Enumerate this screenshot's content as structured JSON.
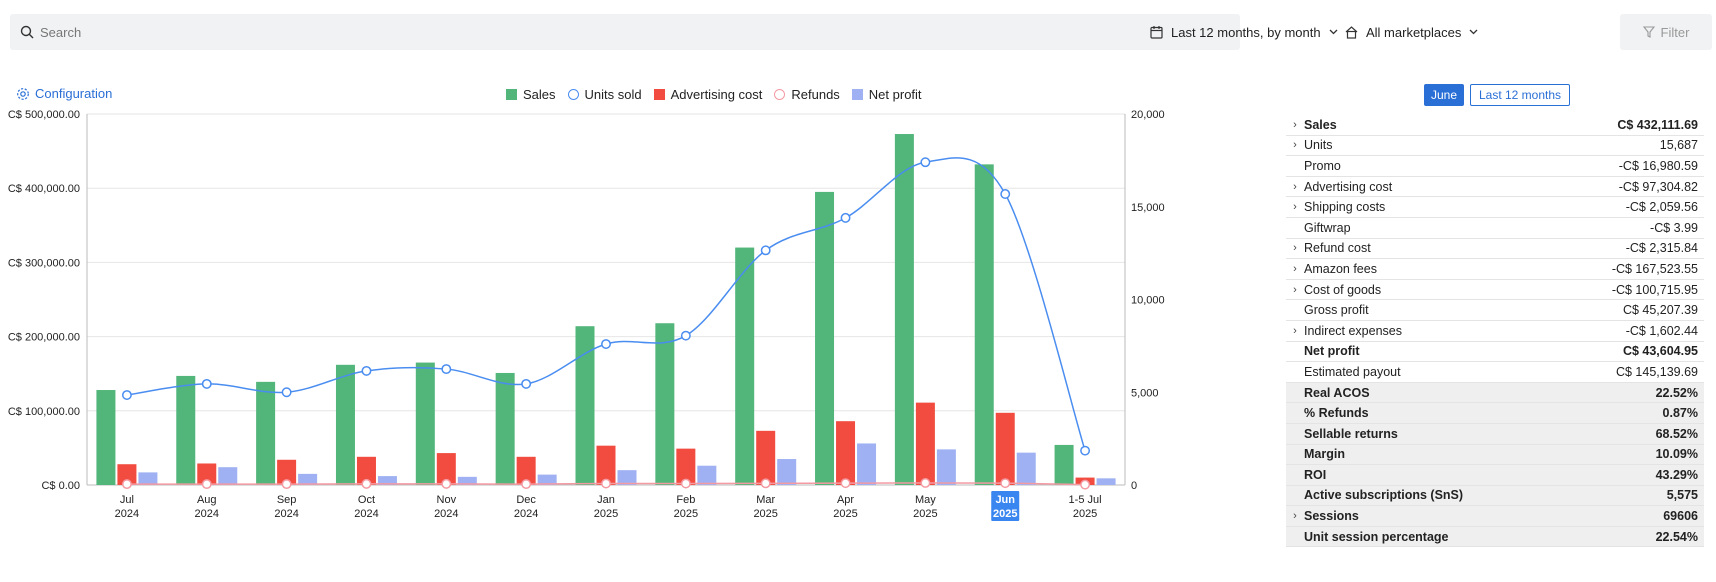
{
  "search": {
    "placeholder": "Search"
  },
  "toolbar": {
    "date_range": "Last 12 months, by month",
    "marketplace": "All marketplaces",
    "filter": "Filter"
  },
  "config_label": "Configuration",
  "legend": [
    {
      "label": "Sales",
      "color": "#52b57a",
      "kind": "bar"
    },
    {
      "label": "Units sold",
      "color": "#4a8df0",
      "kind": "line"
    },
    {
      "label": "Advertising cost",
      "color": "#f14c3f",
      "kind": "bar"
    },
    {
      "label": "Refunds",
      "color": "#f49aa3",
      "kind": "line"
    },
    {
      "label": "Net profit",
      "color": "#9fb1f2",
      "kind": "bar"
    }
  ],
  "periods": {
    "active": "June",
    "other": "Last 12 months"
  },
  "chart_data": {
    "type": "bar",
    "categories": [
      "Jul 2024",
      "Aug 2024",
      "Sep 2024",
      "Oct 2024",
      "Nov 2024",
      "Dec 2024",
      "Jan 2025",
      "Feb 2025",
      "Mar 2025",
      "Apr 2025",
      "May 2025",
      "Jun 2025",
      "1-5 Jul 2025"
    ],
    "x_labels": [
      [
        "Jul",
        "2024"
      ],
      [
        "Aug",
        "2024"
      ],
      [
        "Sep",
        "2024"
      ],
      [
        "Oct",
        "2024"
      ],
      [
        "Nov",
        "2024"
      ],
      [
        "Dec",
        "2024"
      ],
      [
        "Jan",
        "2025"
      ],
      [
        "Feb",
        "2025"
      ],
      [
        "Mar",
        "2025"
      ],
      [
        "Apr",
        "2025"
      ],
      [
        "May",
        "2025"
      ],
      [
        "Jun",
        "2025"
      ],
      [
        "1-5 Jul",
        "2025"
      ]
    ],
    "highlighted_category": "Jun 2025",
    "left_axis": {
      "ticks": [
        "C$ 0.00",
        "C$ 100,000.00",
        "C$ 200,000.00",
        "C$ 300,000.00",
        "C$ 400,000.00",
        "C$ 500,000.00"
      ],
      "range": [
        0,
        500000
      ]
    },
    "right_axis": {
      "ticks": [
        "0",
        "5,000",
        "10,000",
        "15,000",
        "20,000"
      ],
      "range": [
        0,
        20000
      ]
    },
    "series": [
      {
        "name": "Sales",
        "axis": "left",
        "values": [
          128000,
          147000,
          139000,
          162000,
          165000,
          151000,
          214000,
          218000,
          320000,
          395000,
          473000,
          432111.69,
          54000
        ]
      },
      {
        "name": "Advertising cost",
        "axis": "left",
        "values": [
          28000,
          29000,
          34000,
          38000,
          43000,
          38000,
          53000,
          49000,
          73000,
          86000,
          111000,
          97304.82,
          10000
        ]
      },
      {
        "name": "Net profit",
        "axis": "left",
        "values": [
          17000,
          24000,
          15000,
          12000,
          11000,
          14000,
          20000,
          26000,
          35000,
          56000,
          48000,
          43604.95,
          9000
        ]
      },
      {
        "name": "Units sold",
        "axis": "right",
        "values": [
          4850,
          5450,
          5000,
          6150,
          6250,
          5450,
          7600,
          8050,
          12650,
          14400,
          17400,
          15687,
          1850
        ]
      },
      {
        "name": "Refunds",
        "axis": "right",
        "values": [
          50,
          50,
          50,
          60,
          60,
          50,
          80,
          80,
          90,
          100,
          110,
          100,
          20
        ]
      }
    ],
    "grid": true
  },
  "kpi": [
    {
      "label": "Sales",
      "value": "C$ 432,111.69",
      "expand": true,
      "bold": true,
      "shade": false
    },
    {
      "label": "Units",
      "value": "15,687",
      "expand": true,
      "bold": false,
      "shade": false
    },
    {
      "label": "Promo",
      "value": "-C$ 16,980.59",
      "expand": false,
      "bold": false,
      "shade": false
    },
    {
      "label": "Advertising cost",
      "value": "-C$ 97,304.82",
      "expand": true,
      "bold": false,
      "shade": false
    },
    {
      "label": "Shipping costs",
      "value": "-C$ 2,059.56",
      "expand": true,
      "bold": false,
      "shade": false
    },
    {
      "label": "Giftwrap",
      "value": "-C$ 3.99",
      "expand": false,
      "bold": false,
      "shade": false
    },
    {
      "label": "Refund cost",
      "value": "-C$ 2,315.84",
      "expand": true,
      "bold": false,
      "shade": false
    },
    {
      "label": "Amazon fees",
      "value": "-C$ 167,523.55",
      "expand": true,
      "bold": false,
      "shade": false
    },
    {
      "label": "Cost of goods",
      "value": "-C$ 100,715.95",
      "expand": true,
      "bold": false,
      "shade": false
    },
    {
      "label": "Gross profit",
      "value": "C$ 45,207.39",
      "expand": false,
      "bold": false,
      "shade": false
    },
    {
      "label": "Indirect expenses",
      "value": "-C$ 1,602.44",
      "expand": true,
      "bold": false,
      "shade": false
    },
    {
      "label": "Net profit",
      "value": "C$ 43,604.95",
      "expand": false,
      "bold": true,
      "shade": false
    },
    {
      "label": "Estimated payout",
      "value": "C$ 145,139.69",
      "expand": false,
      "bold": false,
      "shade": false
    },
    {
      "label": "Real ACOS",
      "value": "22.52%",
      "expand": false,
      "bold": true,
      "shade": true
    },
    {
      "label": "% Refunds",
      "value": "0.87%",
      "expand": false,
      "bold": true,
      "shade": true
    },
    {
      "label": "Sellable returns",
      "value": "68.52%",
      "expand": false,
      "bold": true,
      "shade": true
    },
    {
      "label": "Margin",
      "value": "10.09%",
      "expand": false,
      "bold": true,
      "shade": true
    },
    {
      "label": "ROI",
      "value": "43.29%",
      "expand": false,
      "bold": true,
      "shade": true
    },
    {
      "label": "Active subscriptions (SnS)",
      "value": "5,575",
      "expand": false,
      "bold": true,
      "shade": true
    },
    {
      "label": "Sessions",
      "value": "69606",
      "expand": true,
      "bold": true,
      "shade": true
    },
    {
      "label": "Unit session percentage",
      "value": "22.54%",
      "expand": false,
      "bold": true,
      "shade": true
    }
  ]
}
